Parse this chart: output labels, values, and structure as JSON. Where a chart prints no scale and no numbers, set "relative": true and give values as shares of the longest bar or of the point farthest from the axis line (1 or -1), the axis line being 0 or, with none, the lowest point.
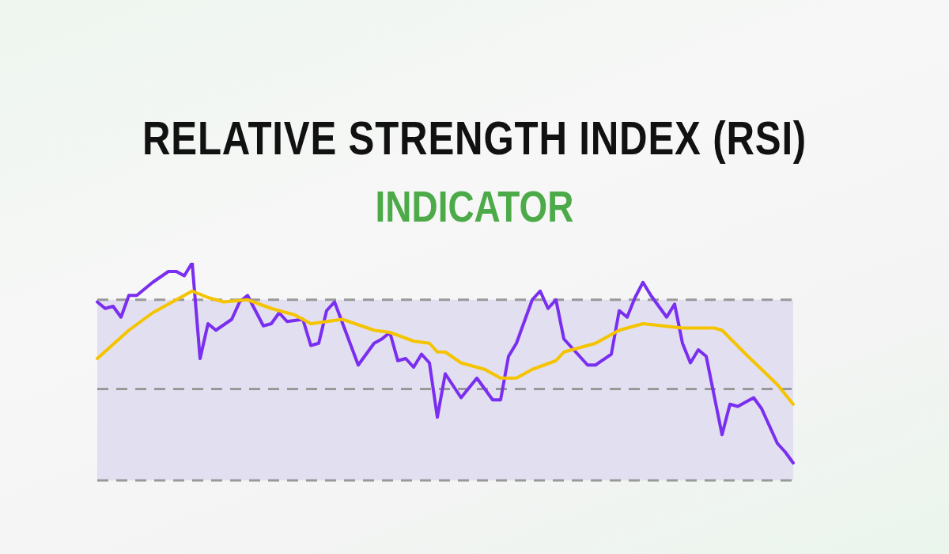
{
  "chart_data": {
    "type": "line",
    "title": "RELATIVE STRENGTH INDEX (RSI)",
    "subtitle": "INDICATOR",
    "relative": true,
    "categories": [
      null,
      null,
      null,
      null,
      null,
      null,
      null,
      null,
      null,
      null,
      null,
      null,
      null,
      null,
      null,
      null,
      null,
      null,
      null,
      null,
      null,
      null,
      null,
      null,
      null,
      null,
      null,
      null,
      null,
      null,
      null,
      null,
      null,
      null,
      null,
      null,
      null,
      null,
      null,
      null,
      null,
      null,
      null,
      null,
      null,
      null,
      null,
      null,
      null,
      null,
      null,
      null,
      null,
      null,
      null,
      null,
      null,
      null,
      null,
      null,
      null,
      null,
      null,
      null,
      null,
      null,
      null,
      null,
      null,
      null,
      null,
      null,
      null,
      null,
      null,
      null,
      null,
      null,
      null,
      null,
      null,
      null,
      null,
      null,
      null,
      null,
      null,
      null,
      null
    ],
    "series": [
      {
        "color": "#7a2ef0",
        "values": [
          0.82,
          0.79,
          0.8,
          0.75,
          0.85,
          0.85,
          null,
          0.91,
          null,
          0.96,
          0.96,
          0.94,
          1,
          0.56,
          0.72,
          0.69,
          null,
          0.74,
          0.82,
          0.85,
          null,
          0.71,
          0.72,
          0.77,
          0.73,
          null,
          0.74,
          0.62,
          0.63,
          0.78,
          0.82,
          null,
          null,
          0.53,
          null,
          0.63,
          0.65,
          0.68,
          0.55,
          0.56,
          0.52,
          0.58,
          0.54,
          0.29,
          0.49,
          null,
          0.38,
          null,
          0.47,
          0.42,
          0.37,
          0.37,
          0.57,
          0.63,
          null,
          0.83,
          0.87,
          0.79,
          0.83,
          0.65,
          null,
          null,
          0.53,
          0.53,
          null,
          0.58,
          0.78,
          0.75,
          0.84,
          0.91,
          0.85,
          0.8,
          0.75,
          0.81,
          0.63,
          0.54,
          0.6,
          0.57,
          null,
          0.21,
          0.35,
          0.34,
          null,
          0.38,
          0.33,
          null,
          0.17,
          0.13,
          0.08
        ]
      },
      {
        "color": "#f5c400",
        "values": [
          0.56,
          null,
          null,
          null,
          0.69,
          null,
          null,
          0.77,
          null,
          null,
          null,
          null,
          0.87,
          null,
          0.84,
          null,
          0.82,
          null,
          null,
          0.83,
          null,
          null,
          0.79,
          null,
          null,
          0.76,
          null,
          0.72,
          null,
          0.73,
          null,
          0.74,
          null,
          null,
          null,
          0.69,
          null,
          0.68,
          null,
          null,
          0.64,
          null,
          0.63,
          0.59,
          0.59,
          null,
          0.54,
          null,
          null,
          0.51,
          null,
          0.47,
          null,
          0.47,
          null,
          0.51,
          null,
          null,
          0.55,
          0.59,
          null,
          null,
          null,
          0.63,
          null,
          null,
          0.69,
          null,
          null,
          0.72,
          null,
          null,
          null,
          null,
          0.7,
          null,
          null,
          null,
          0.7,
          0.69,
          null,
          null,
          0.58,
          null,
          null,
          null,
          0.44,
          null,
          0.35
        ]
      }
    ],
    "bands": [
      {
        "axis": "y",
        "from": 0,
        "to": 0.83,
        "color": "#e2dff0"
      }
    ],
    "ref_lines": [
      {
        "axis": "y",
        "value": 0.83,
        "color": "#999999",
        "line_style": "dashed"
      },
      {
        "axis": "y",
        "value": 0.42,
        "color": "#999999",
        "line_style": "dashed"
      },
      {
        "axis": "y",
        "value": 0,
        "color": "#999999",
        "line_style": "dashed"
      }
    ]
  }
}
